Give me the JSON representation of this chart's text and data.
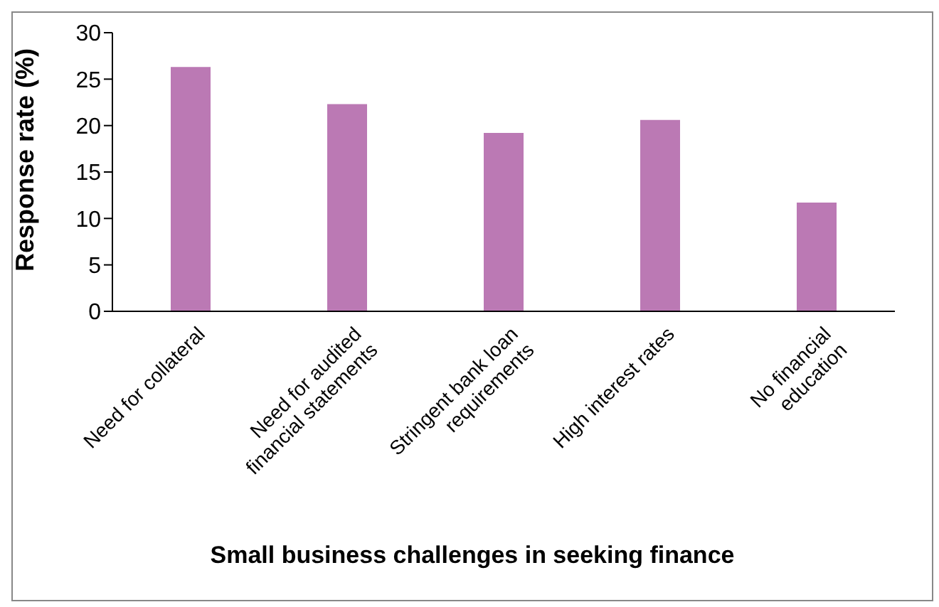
{
  "chart_data": {
    "type": "bar",
    "xlabel": "Small business challenges in seeking finance",
    "ylabel": "Response rate (%)",
    "categories": [
      "Need for collateral",
      "Need for audited financial statements",
      "Stringent bank loan requirements",
      "High interest rates",
      "No financial education"
    ],
    "values": [
      26.3,
      22.3,
      19.2,
      20.6,
      11.7
    ],
    "color": "#bb79b4",
    "ylim": [
      0,
      30
    ],
    "yticks": [
      0,
      5,
      10,
      15,
      20,
      25,
      30
    ],
    "grid": false,
    "legend": false
  }
}
